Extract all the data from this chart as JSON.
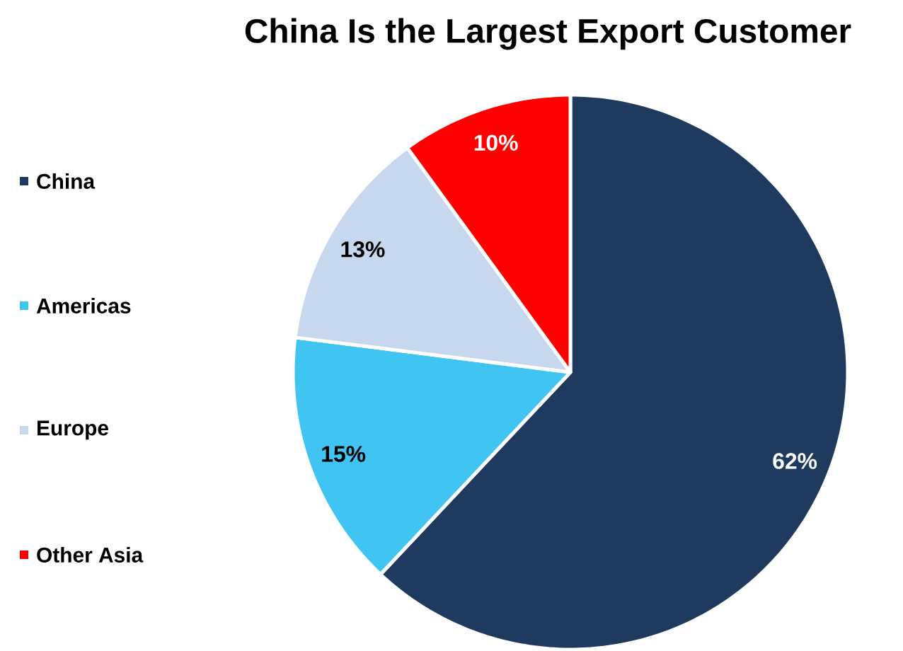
{
  "chart_data": {
    "type": "pie",
    "title": "China Is the Largest Export Customer",
    "categories": [
      "China",
      "Americas",
      "Europe",
      "Other Asia"
    ],
    "values": [
      62,
      15,
      13,
      10
    ],
    "colors": [
      "#1f3a5f",
      "#40c4f2",
      "#c6d7ee",
      "#ff0000"
    ],
    "value_labels": [
      "62%",
      "15%",
      "13%",
      "10%"
    ],
    "legend": "left"
  }
}
